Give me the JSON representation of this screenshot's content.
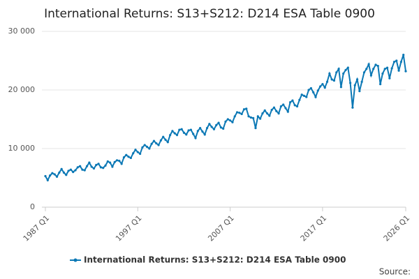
{
  "chart_data": {
    "type": "line",
    "title": "International Returns: S13+S212: D214 ESA Table 0900",
    "source": "Source:",
    "categories": [
      "1987 Q1",
      null,
      null,
      null,
      null,
      null,
      null,
      null,
      null,
      null,
      null,
      null,
      null,
      null,
      null,
      null,
      null,
      null,
      null,
      null,
      null,
      null,
      null,
      null,
      null,
      null,
      null,
      null,
      null,
      null,
      null,
      null,
      null,
      null,
      null,
      null,
      null,
      null,
      null,
      null,
      "1997 Q1",
      null,
      null,
      null,
      null,
      null,
      null,
      null,
      null,
      null,
      null,
      null,
      null,
      null,
      null,
      null,
      null,
      null,
      null,
      null,
      null,
      null,
      null,
      null,
      null,
      null,
      null,
      null,
      null,
      null,
      null,
      null,
      null,
      null,
      null,
      null,
      null,
      null,
      null,
      null,
      "2007 Q1",
      null,
      null,
      null,
      null,
      null,
      null,
      null,
      null,
      null,
      null,
      null,
      null,
      null,
      null,
      null,
      null,
      null,
      null,
      null,
      null,
      null,
      null,
      null,
      null,
      null,
      null,
      null,
      null,
      null,
      null,
      null,
      null,
      null,
      null,
      null,
      null,
      null,
      null,
      null,
      "2017 Q1",
      null,
      null,
      null,
      null,
      null,
      null,
      null,
      null,
      null,
      null,
      null,
      null,
      null,
      null,
      null,
      null,
      null,
      null,
      null,
      null,
      null,
      null,
      null,
      null,
      null,
      null,
      null,
      null,
      null,
      null,
      null,
      null,
      null,
      null,
      null,
      "2026 Q1"
    ],
    "series": [
      {
        "name": "International Returns: S13+S212: D214 ESA Table 0900",
        "color": "#0b78b5",
        "values": [
          5300,
          4600,
          5400,
          5800,
          5600,
          5200,
          5900,
          6500,
          5900,
          5500,
          6200,
          6400,
          6000,
          6300,
          6800,
          7000,
          6400,
          6300,
          7000,
          7600,
          6900,
          6600,
          7200,
          7400,
          6800,
          6700,
          7100,
          7800,
          7600,
          6900,
          7700,
          8000,
          7900,
          7400,
          8500,
          8900,
          8600,
          8400,
          9200,
          9800,
          9400,
          9100,
          10200,
          10600,
          10300,
          10000,
          10800,
          11300,
          10900,
          10600,
          11400,
          12000,
          11500,
          11100,
          12300,
          13000,
          12600,
          12300,
          13200,
          13300,
          12700,
          12400,
          13100,
          13200,
          12500,
          11800,
          13000,
          13500,
          12900,
          12400,
          13500,
          14200,
          13700,
          13300,
          14000,
          14400,
          13600,
          13400,
          14600,
          15000,
          14800,
          14500,
          15500,
          16200,
          16100,
          15900,
          16700,
          16800,
          15500,
          15300,
          15200,
          13500,
          15500,
          15100,
          16000,
          16500,
          16000,
          15600,
          16600,
          17000,
          16400,
          16000,
          17200,
          17500,
          16900,
          16300,
          17900,
          18200,
          17400,
          17200,
          18300,
          19200,
          19000,
          18800,
          20000,
          20300,
          19600,
          18800,
          19900,
          20600,
          21000,
          20400,
          21400,
          22800,
          21800,
          21600,
          23000,
          23600,
          20500,
          22800,
          23400,
          23800,
          21200,
          17000,
          20800,
          21800,
          19800,
          21400,
          23000,
          23600,
          24400,
          22500,
          23600,
          24300,
          24100,
          21000,
          22800,
          23600,
          23800,
          22000,
          23700,
          24800,
          25000,
          23300,
          24800,
          26000,
          23200
        ]
      }
    ],
    "ylim": [
      0,
      30000
    ],
    "yticks": [
      0,
      {
        "value": 10000,
        "label": "10 000"
      },
      {
        "value": 20000,
        "label": "20 000"
      },
      {
        "value": 30000,
        "label": "30 000"
      }
    ],
    "grid": true
  }
}
